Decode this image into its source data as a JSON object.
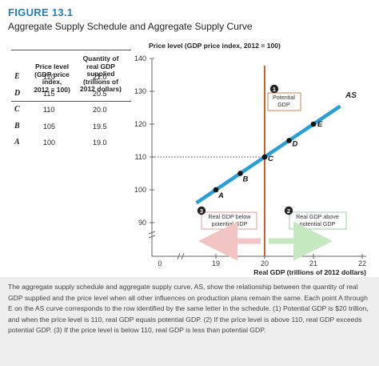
{
  "figure": {
    "label": "FIGURE 13.1",
    "title": "Aggregate Supply Schedule and Aggregate Supply Curve"
  },
  "schedule": {
    "col_price_lines": [
      "Price level",
      "(GDP price",
      "index,",
      "2012 = 100)"
    ],
    "col_qty_lines": [
      "Quantity of",
      "real GDP",
      "supplied",
      "(trillions of",
      "2012 dollars)"
    ],
    "rows": [
      {
        "point": "E",
        "price": "120",
        "qty": "21.0"
      },
      {
        "point": "D",
        "price": "115",
        "qty": "20.5"
      },
      {
        "point": "C",
        "price": "110",
        "qty": "20.0"
      },
      {
        "point": "B",
        "price": "105",
        "qty": "19.5"
      },
      {
        "point": "A",
        "price": "100",
        "qty": "19.0"
      }
    ]
  },
  "chart_data": {
    "type": "line",
    "ylabel": "Price level (GDP price index, 2012 = 100)",
    "xlabel": "Real GDP (trillions of 2012 dollars)",
    "xlim": [
      0,
      22
    ],
    "ylim": [
      90,
      140
    ],
    "x_ticks": [
      "0",
      "19",
      "20",
      "21",
      "22"
    ],
    "y_ticks": [
      "90",
      "100",
      "110",
      "120",
      "130",
      "140"
    ],
    "series": [
      {
        "name": "AS",
        "line": [
          [
            18.6,
            96
          ],
          [
            21.55,
            125.5
          ]
        ],
        "points": [
          {
            "label": "A",
            "x": 19.0,
            "y": 100
          },
          {
            "label": "B",
            "x": 19.5,
            "y": 105
          },
          {
            "label": "C",
            "x": 20.0,
            "y": 110
          },
          {
            "label": "D",
            "x": 20.5,
            "y": 115
          },
          {
            "label": "E",
            "x": 21.0,
            "y": 120
          }
        ]
      }
    ],
    "potential_gdp": 20,
    "reference_price": 110,
    "annotations": [
      {
        "number": "1",
        "text_lines": [
          "Potential",
          "GDP"
        ]
      },
      {
        "number": "2",
        "text_lines": [
          "Real GDP above",
          "potential GDP"
        ]
      },
      {
        "number": "3",
        "text_lines": [
          "Real GDP below",
          "potential GDP"
        ]
      }
    ],
    "colors": {
      "as_curve": "#2a9fd6",
      "potential": "#c8642a",
      "below_arrow": "#f3c4c4",
      "above_arrow": "#c6e8c0",
      "axis": "#666666"
    }
  },
  "caption": {
    "text": "The aggregate supply schedule and aggregate supply curve, AS, show the relationship between the quantity of real GDP supplied and the price level when all other influences on production plans remain the same. Each point A through E on the AS curve corresponds to the row identified by the same letter in the schedule. (1) Potential GDP is $20 trillion, and when the price level is 110, real GDP equals potential GDP. (2) If the price level is above 110, real GDP exceeds potential GDP. (3) If the price level is below 110, real GDP is less than potential GDP."
  }
}
